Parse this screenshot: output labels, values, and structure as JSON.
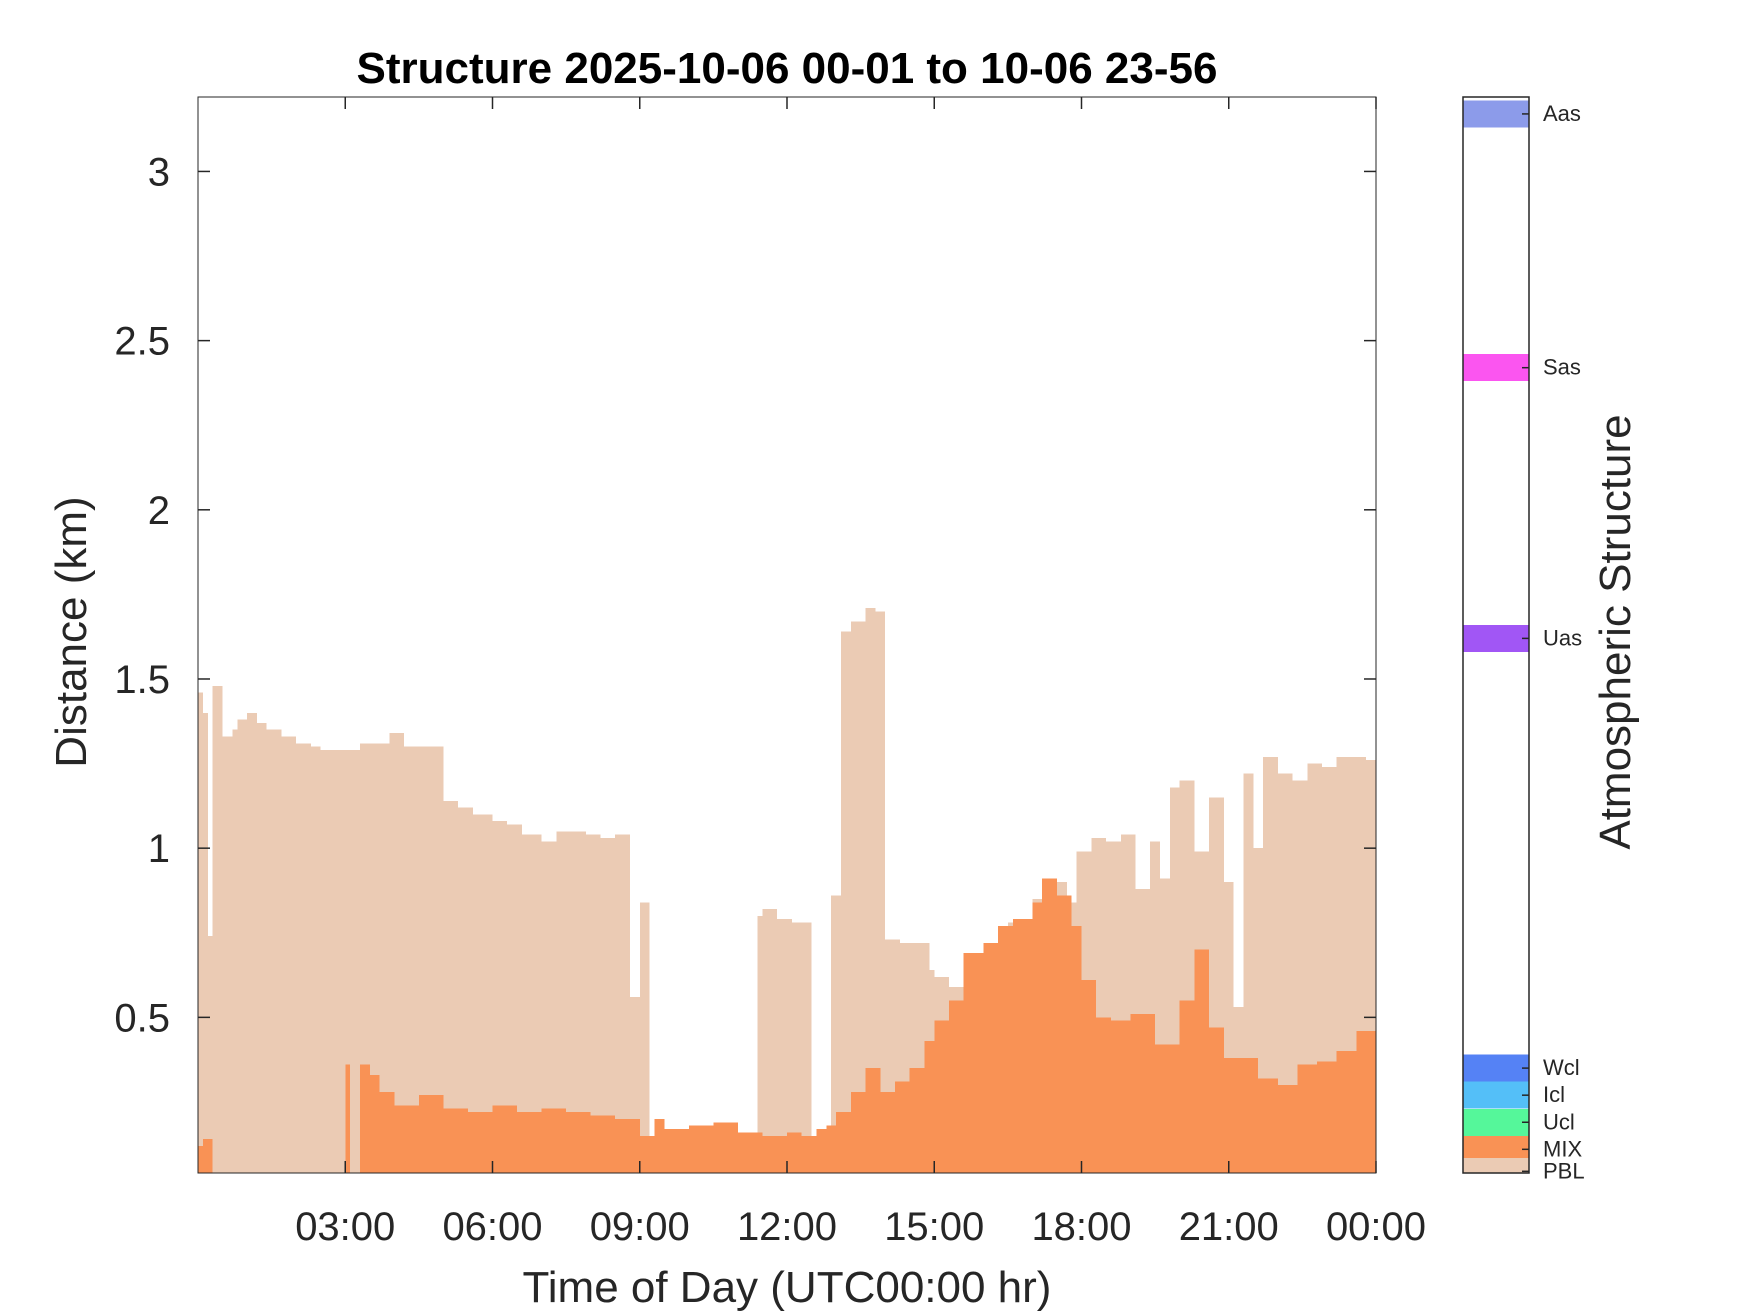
{
  "chart_data": {
    "type": "area",
    "title": "Structure 2025-10-06 00-01 to 10-06 23-56",
    "xlabel": "Time of Day (UTC00:00 hr)",
    "ylabel": "Distance (km)",
    "x_unit": "hours",
    "xlim": [
      0,
      24
    ],
    "ylim": [
      0.04,
      3.22
    ],
    "x_ticks": [
      3,
      6,
      9,
      12,
      15,
      18,
      21,
      24
    ],
    "x_tick_labels": [
      "03:00",
      "06:00",
      "09:00",
      "12:00",
      "15:00",
      "18:00",
      "21:00",
      "00:00"
    ],
    "y_ticks": [
      0.5,
      1,
      1.5,
      2,
      2.5,
      3
    ],
    "y_tick_labels": [
      "0.5",
      "1",
      "1.5",
      "2",
      "2.5",
      "3"
    ],
    "grid": false,
    "series": [
      {
        "name": "PBL",
        "color": "#ebcbb4",
        "x": [
          0,
          0.1,
          0.2,
          0.3,
          0.5,
          0.7,
          0.8,
          1.0,
          1.2,
          1.4,
          1.5,
          1.7,
          2.0,
          2.3,
          2.5,
          2.8,
          3.0,
          3.3,
          3.6,
          3.9,
          4.2,
          4.5,
          4.8,
          5.0,
          5.3,
          5.6,
          6.0,
          6.3,
          6.6,
          7.0,
          7.3,
          7.6,
          7.9,
          8.2,
          8.5,
          8.8,
          9.0,
          9.2,
          9.5,
          10.0,
          10.5,
          11.0,
          11.4,
          11.5,
          11.8,
          12.1,
          12.5,
          12.6,
          12.9,
          13.1,
          13.3,
          13.6,
          13.8,
          14.0,
          14.3,
          14.6,
          14.9,
          15.0,
          15.3,
          15.6,
          16.0,
          16.5,
          17.0,
          17.3,
          17.7,
          17.9,
          18.2,
          18.5,
          18.8,
          19.1,
          19.4,
          19.6,
          19.8,
          20.0,
          20.3,
          20.6,
          20.9,
          21.1,
          21.3,
          21.5,
          21.7,
          22.0,
          22.3,
          22.6,
          22.9,
          23.2,
          23.5,
          23.8,
          24.0
        ],
        "values": [
          1.46,
          1.4,
          0.74,
          1.48,
          1.33,
          1.35,
          1.38,
          1.4,
          1.37,
          1.35,
          1.35,
          1.33,
          1.31,
          1.3,
          1.29,
          1.29,
          1.29,
          1.31,
          1.31,
          1.34,
          1.3,
          1.3,
          1.3,
          1.14,
          1.12,
          1.1,
          1.08,
          1.07,
          1.04,
          1.02,
          1.05,
          1.05,
          1.04,
          1.03,
          1.04,
          0.56,
          0.84,
          0,
          0,
          0,
          0,
          0,
          0.8,
          0.82,
          0.79,
          0.78,
          0,
          0,
          0.86,
          1.64,
          1.67,
          1.71,
          1.7,
          0.73,
          0.72,
          0.72,
          0.64,
          0.62,
          0.59,
          0.66,
          0.7,
          0.78,
          0.85,
          0.9,
          0.84,
          0.99,
          1.03,
          1.02,
          1.04,
          0.88,
          1.02,
          0.91,
          1.18,
          1.2,
          0.99,
          1.15,
          0.9,
          0.53,
          1.22,
          1.0,
          1.27,
          1.22,
          1.2,
          1.25,
          1.24,
          1.27,
          1.27,
          1.26,
          1.26
        ]
      },
      {
        "name": "MIX",
        "color": "#f99255",
        "x": [
          0,
          0.1,
          0.3,
          0.9,
          1.0,
          2.9,
          3.0,
          3.1,
          3.3,
          3.5,
          3.7,
          4.0,
          4.5,
          5.0,
          5.5,
          6.0,
          6.5,
          7.0,
          7.5,
          8.0,
          8.5,
          9.0,
          9.3,
          9.5,
          10.0,
          10.5,
          11.0,
          11.5,
          12.0,
          12.3,
          12.6,
          12.8,
          13.0,
          13.3,
          13.6,
          13.9,
          14.2,
          14.5,
          14.8,
          15.0,
          15.3,
          15.6,
          16.0,
          16.3,
          16.6,
          17.0,
          17.2,
          17.5,
          17.8,
          18.0,
          18.3,
          18.6,
          19.0,
          19.5,
          20.0,
          20.3,
          20.6,
          20.9,
          21.2,
          21.6,
          22.0,
          22.4,
          22.8,
          23.2,
          23.6,
          24.0
        ],
        "values": [
          0.12,
          0.14,
          0,
          0,
          0,
          0,
          0.36,
          0,
          0.36,
          0.33,
          0.28,
          0.24,
          0.27,
          0.23,
          0.22,
          0.24,
          0.22,
          0.23,
          0.22,
          0.21,
          0.2,
          0.15,
          0.2,
          0.17,
          0.18,
          0.19,
          0.16,
          0.15,
          0.16,
          0.15,
          0.17,
          0.18,
          0.22,
          0.28,
          0.35,
          0.28,
          0.31,
          0.35,
          0.43,
          0.49,
          0.55,
          0.69,
          0.72,
          0.77,
          0.79,
          0.84,
          0.91,
          0.86,
          0.77,
          0.61,
          0.5,
          0.49,
          0.51,
          0.42,
          0.55,
          0.7,
          0.47,
          0.38,
          0.38,
          0.32,
          0.3,
          0.36,
          0.37,
          0.4,
          0.46,
          0.48
        ]
      }
    ],
    "colorbar": {
      "title": "Atmospheric Structure",
      "bands": [
        {
          "label": "Aas",
          "color": "#8c9bea",
          "value": 3.17
        },
        {
          "label": "Sas",
          "color": "#fb55f0",
          "value": 2.42
        },
        {
          "label": "Uas",
          "color": "#a156f5",
          "value": 1.62
        },
        {
          "label": "Wcl",
          "color": "#5582f5",
          "value": 0.35
        },
        {
          "label": "Icl",
          "color": "#54bff8",
          "value": 0.27
        },
        {
          "label": "Ucl",
          "color": "#55f79a",
          "value": 0.19
        },
        {
          "label": "MIX",
          "color": "#f99255",
          "value": 0.11
        },
        {
          "label": "PBL",
          "color": "#ebcbb4",
          "value": 0.045
        }
      ]
    }
  }
}
